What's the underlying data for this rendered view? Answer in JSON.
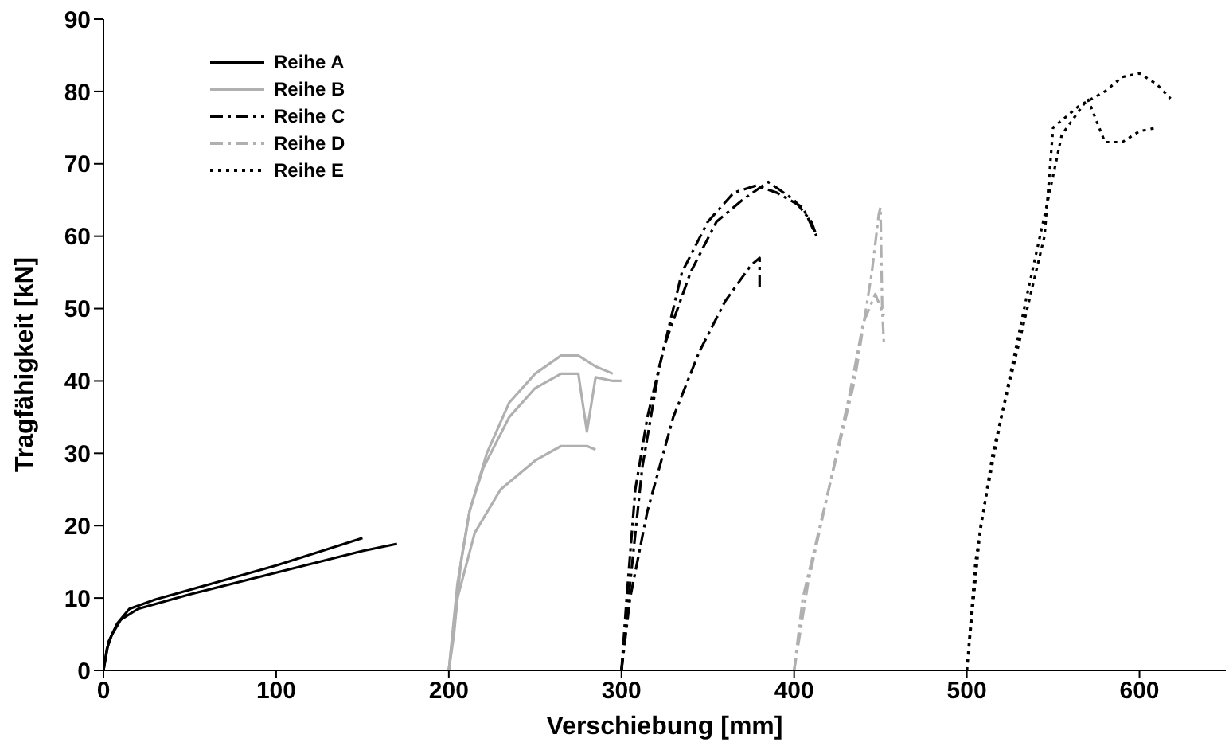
{
  "chart_data": {
    "type": "line",
    "xlabel": "Verschiebung [mm]",
    "ylabel": "Tragfähigkeit [kN]",
    "xlim": [
      0,
      650
    ],
    "xticks": [
      0,
      100,
      200,
      300,
      400,
      500,
      600
    ],
    "ylim": [
      0,
      90
    ],
    "yticks": [
      0,
      10,
      20,
      30,
      40,
      50,
      60,
      70,
      80,
      90
    ],
    "grid": false,
    "legend": "top left",
    "marker": "none",
    "series": [
      {
        "name": "Reihe A",
        "color": "#000000",
        "line_style": "solid",
        "x": [
          0,
          2,
          5,
          10,
          20,
          50,
          100,
          150,
          170
        ],
        "values": [
          0,
          3,
          5,
          7,
          8.5,
          10.5,
          13.5,
          16.5,
          17.5
        ]
      },
      {
        "color": "#000000",
        "line_style": "solid",
        "x": [
          0,
          3,
          8,
          15,
          30,
          60,
          100,
          150
        ],
        "values": [
          0,
          4,
          6.5,
          8.5,
          9.8,
          11.8,
          14.5,
          18.3
        ]
      },
      {
        "name": "Reihe B",
        "color": "#b0b0b0",
        "line_style": "solid",
        "x": [
          200,
          203,
          207,
          212,
          220,
          235,
          250,
          265,
          275,
          280,
          285,
          295,
          300
        ],
        "values": [
          0,
          5,
          15,
          22,
          28,
          35,
          39,
          41,
          41,
          33,
          40.5,
          40,
          40
        ]
      },
      {
        "color": "#b0b0b0",
        "line_style": "solid",
        "x": [
          200,
          205,
          212,
          222,
          235,
          250,
          265,
          275,
          285,
          295
        ],
        "values": [
          0,
          12,
          22,
          30,
          37,
          41,
          43.5,
          43.5,
          42,
          41
        ]
      },
      {
        "color": "#b0b0b0",
        "line_style": "solid",
        "x": [
          200,
          205,
          215,
          230,
          250,
          265,
          280,
          285
        ],
        "values": [
          0,
          10,
          19,
          25,
          29,
          31,
          31,
          30.5
        ]
      },
      {
        "name": "Reihe C",
        "color": "#000000",
        "line_style": "dashed",
        "x": [
          300,
          303,
          308,
          315,
          325,
          340,
          355,
          370,
          385,
          400,
          410,
          413
        ],
        "values": [
          0,
          10,
          25,
          35,
          45,
          55,
          62,
          65,
          67.5,
          65,
          62,
          60
        ]
      },
      {
        "color": "#000000",
        "line_style": "dashed",
        "x": [
          300,
          305,
          312,
          322,
          335,
          350,
          365,
          378,
          390,
          405,
          413
        ],
        "values": [
          0,
          12,
          28,
          42,
          55,
          62,
          66,
          67,
          66,
          64,
          60
        ]
      },
      {
        "color": "#000000",
        "line_style": "dashed",
        "x": [
          300,
          305,
          315,
          330,
          345,
          360,
          375,
          380,
          380
        ],
        "values": [
          0,
          10,
          22,
          35,
          44,
          51,
          56,
          57,
          53
        ]
      },
      {
        "name": "Reihe D",
        "color": "#b0b0b0",
        "line_style": "dashed",
        "x": [
          400,
          405,
          415,
          425,
          435,
          445,
          449,
          450,
          451,
          452
        ],
        "values": [
          0,
          10,
          20,
          30,
          40,
          55,
          63,
          64,
          50,
          45
        ]
      },
      {
        "color": "#b0b0b0",
        "line_style": "dashed",
        "x": [
          400,
          408,
          420,
          432,
          440,
          447,
          452
        ],
        "values": [
          0,
          12,
          25,
          38,
          48,
          52,
          49
        ]
      },
      {
        "name": "Reihe E",
        "color": "#000000",
        "line_style": "dotted",
        "x": [
          500,
          505,
          515,
          530,
          545,
          550,
          565,
          580,
          590,
          600,
          610,
          618
        ],
        "values": [
          0,
          15,
          30,
          45,
          60,
          75,
          78,
          80,
          82,
          82.5,
          81,
          79
        ]
      },
      {
        "color": "#000000",
        "line_style": "dotted",
        "x": [
          500,
          508,
          520,
          535,
          547,
          555,
          570,
          580,
          590,
          600,
          610
        ],
        "values": [
          0,
          20,
          35,
          52,
          65,
          74,
          79,
          73,
          73,
          74.5,
          75
        ]
      }
    ]
  }
}
